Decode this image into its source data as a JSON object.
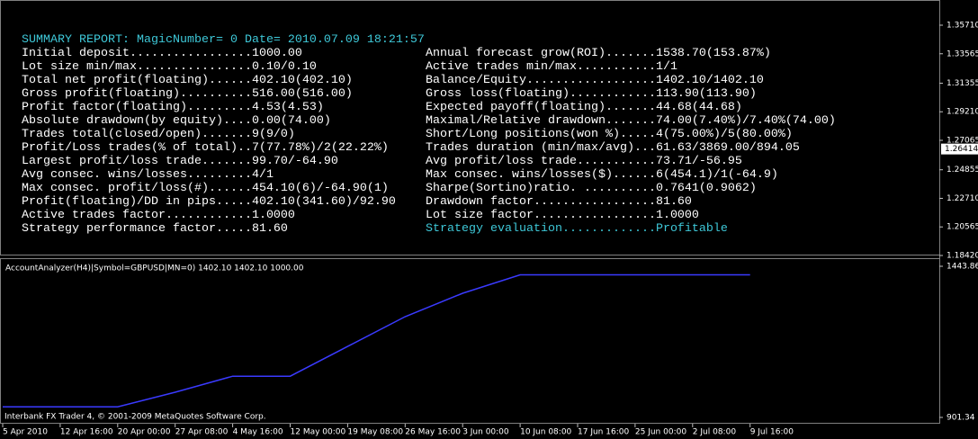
{
  "report": {
    "title": "SUMMARY REPORT: MagicNumber= 0 Date= 2010.07.09 18:21:57",
    "left": [
      "Initial deposit.................1000.00",
      "Lot size min/max................0.10/0.10",
      "Total net profit(floating)......402.10(402.10)",
      "Gross profit(floating)..........516.00(516.00)",
      "Profit factor(floating).........4.53(4.53)",
      "Absolute drawdown(by equity)....0.00(74.00)",
      "Trades total(closed/open).......9(9/0)",
      "Profit/Loss trades(% of total)..7(77.78%)/2(22.22%)",
      "Largest profit/loss trade.......99.70/-64.90",
      "Avg consec. wins/losses.........4/1",
      "Max consec. profit/loss(#)......454.10(6)/-64.90(1)",
      "Profit(floating)/DD in pips.....402.10(341.60)/92.90",
      "Active trades factor............1.0000",
      "Strategy performance factor.....81.60"
    ],
    "right": [
      "Annual forecast grow(ROI).......1538.70(153.87%)",
      "Active trades min/max...........1/1",
      "Balance/Equity..................1402.10/1402.10",
      "Gross loss(floating)............113.90(113.90)",
      "Expected payoff(floating).......44.68(44.68)",
      "Maximal/Relative drawdown.......74.00(7.40%)/7.40%(74.00)",
      "Short/Long positions(won %).....4(75.00%)/5(80.00%)",
      "Trades duration (min/max/avg)...61.63/3869.00/894.05",
      "Avg profit/loss trade...........73.71/-56.95",
      "Max consec. wins/losses($)......6(454.1)/1(-64.9)",
      "Sharpe(Sortino)ratio. ..........0.7641(0.9062)",
      "Drawdown factor.................81.60",
      "Lot size factor.................1.0000",
      "Strategy evaluation.............Profitable"
    ]
  },
  "price_axis": {
    "ticks": [
      {
        "value": 1.3571,
        "label": "1.35710"
      },
      {
        "value": 1.33565,
        "label": "1.33565"
      },
      {
        "value": 1.31355,
        "label": "1.31355"
      },
      {
        "value": 1.2921,
        "label": "1.29210"
      },
      {
        "value": 1.27065,
        "label": "1.27065"
      },
      {
        "value": 1.24855,
        "label": "1.24855"
      },
      {
        "value": 1.2271,
        "label": "1.22710"
      },
      {
        "value": 1.20565,
        "label": "1.20565"
      },
      {
        "value": 1.1842,
        "label": "1.18420"
      }
    ],
    "current": {
      "value": 1.26414,
      "label": "1.26414"
    }
  },
  "chart_data": {
    "type": "line",
    "title": "AccountAnalyzer(H4)|Symbol=GBPUSD|MN=0) 1402.10 1402.10 1000.00",
    "categories": [
      "5 Apr 2010",
      "12 Apr 16:00",
      "20 Apr 00:00",
      "27 Apr 08:00",
      "4 May 16:00",
      "12 May 00:00",
      "19 May 08:00",
      "26 May 16:00",
      "3 Jun 00:00",
      "10 Jun 08:00",
      "17 Jun 16:00",
      "25 Jun 00:00",
      "2 Jul 08:00",
      "9 Jul 16:00"
    ],
    "values": [
      950,
      950,
      950,
      1000,
      1055,
      1055,
      1157,
      1259,
      1339,
      1402.1,
      1402.1,
      1402.1,
      1402.1,
      1402.1
    ],
    "color": "#3a3aff",
    "ylim": [
      901.34,
      1443.86
    ],
    "yticks": [
      1443.86,
      901.34
    ]
  },
  "footer": "Interbank FX Trader 4, © 2001-2009 MetaQuotes Software Corp."
}
